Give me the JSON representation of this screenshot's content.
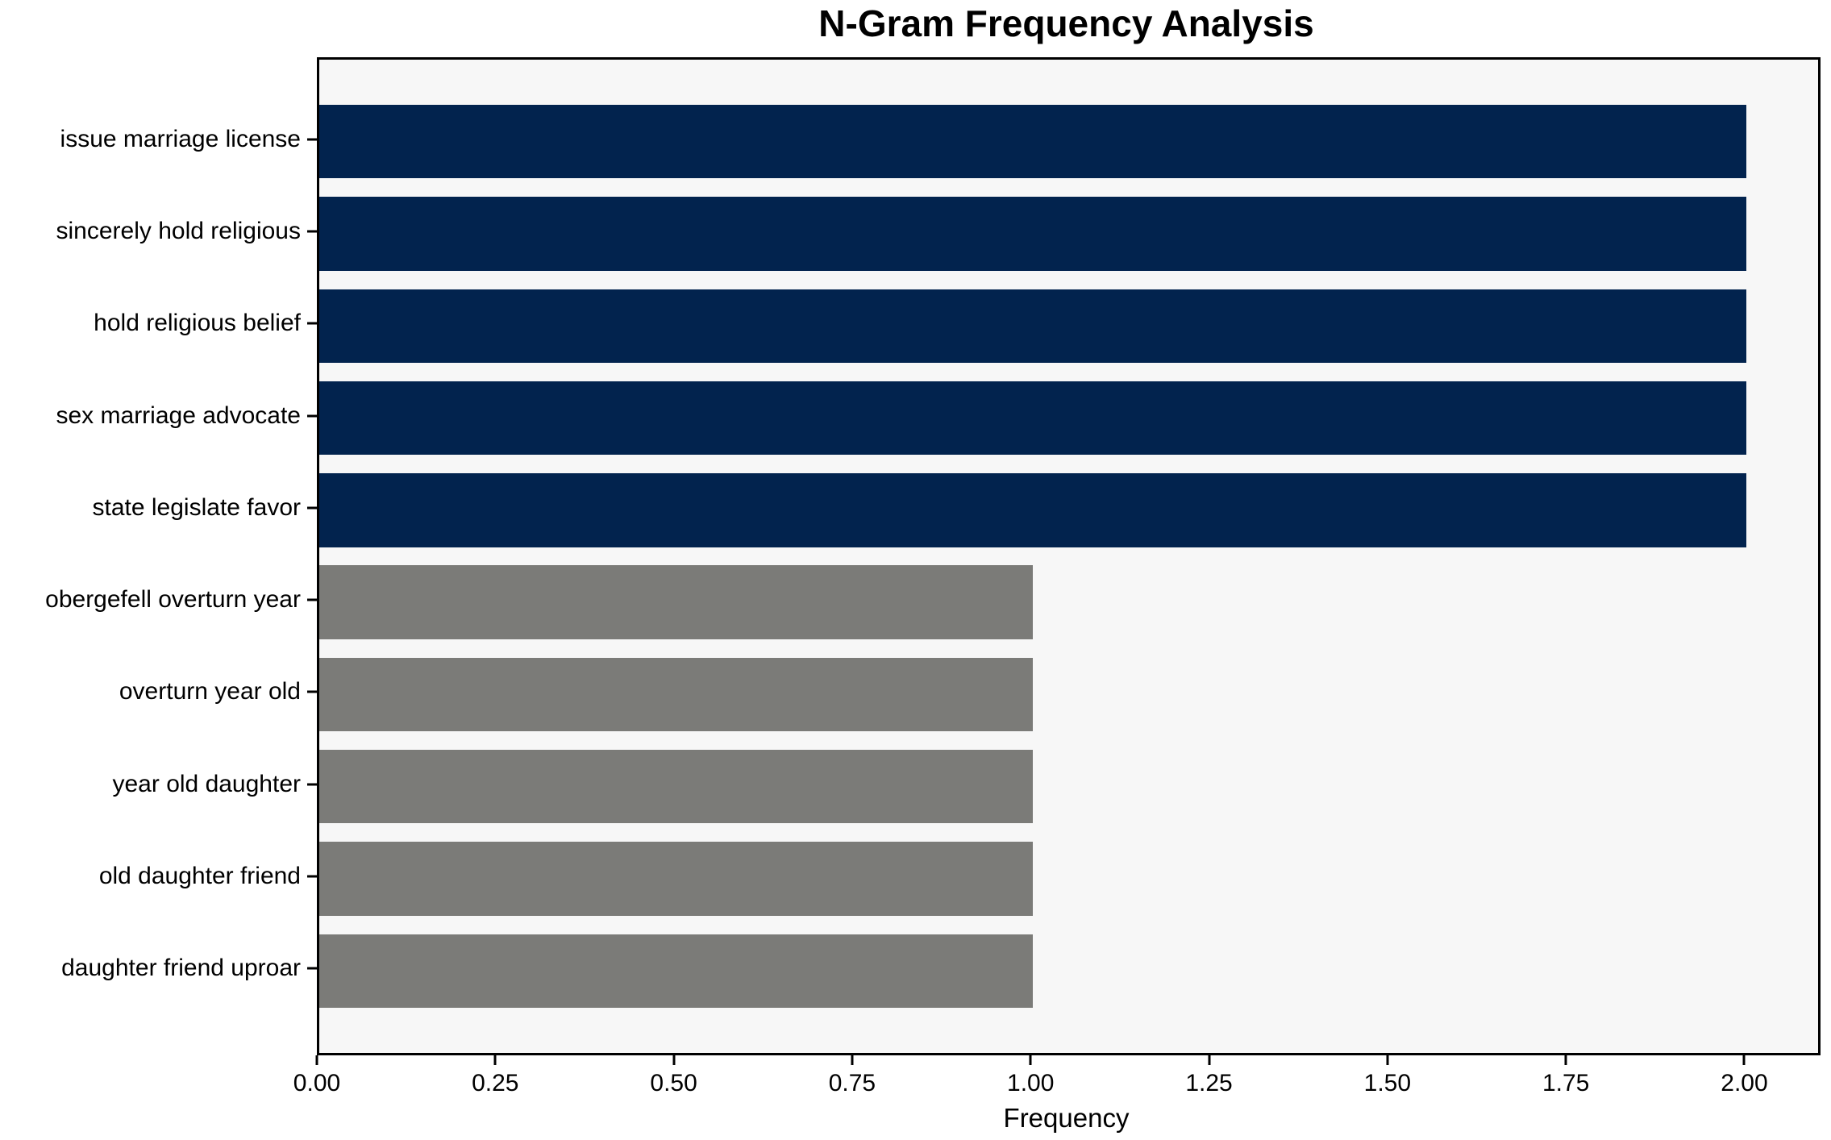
{
  "chart_data": {
    "type": "bar",
    "orientation": "horizontal",
    "title": "N-Gram Frequency Analysis",
    "xlabel": "Frequency",
    "ylabel": "",
    "categories": [
      "issue marriage license",
      "sincerely hold religious",
      "hold religious belief",
      "sex marriage advocate",
      "state legislate favor",
      "obergefell overturn year",
      "overturn year old",
      "year old daughter",
      "old daughter friend",
      "daughter friend uproar"
    ],
    "values": [
      2,
      2,
      2,
      2,
      2,
      1,
      1,
      1,
      1,
      1
    ],
    "colors": [
      "#02234e",
      "#02234e",
      "#02234e",
      "#02234e",
      "#02234e",
      "#7b7b78",
      "#7b7b78",
      "#7b7b78",
      "#7b7b78",
      "#7b7b78"
    ],
    "xlim": [
      0,
      2.1
    ],
    "xticks": [
      0,
      0.25,
      0.5,
      0.75,
      1.0,
      1.25,
      1.5,
      1.75,
      2.0
    ],
    "xtick_labels": [
      "0.00",
      "0.25",
      "0.50",
      "0.75",
      "1.00",
      "1.25",
      "1.50",
      "1.75",
      "2.00"
    ],
    "bar_thickness": 0.8,
    "grid": "off",
    "legend": "none",
    "plot_background": "#f7f7f7",
    "spine_color": "#000000",
    "text_color": "#000000"
  }
}
